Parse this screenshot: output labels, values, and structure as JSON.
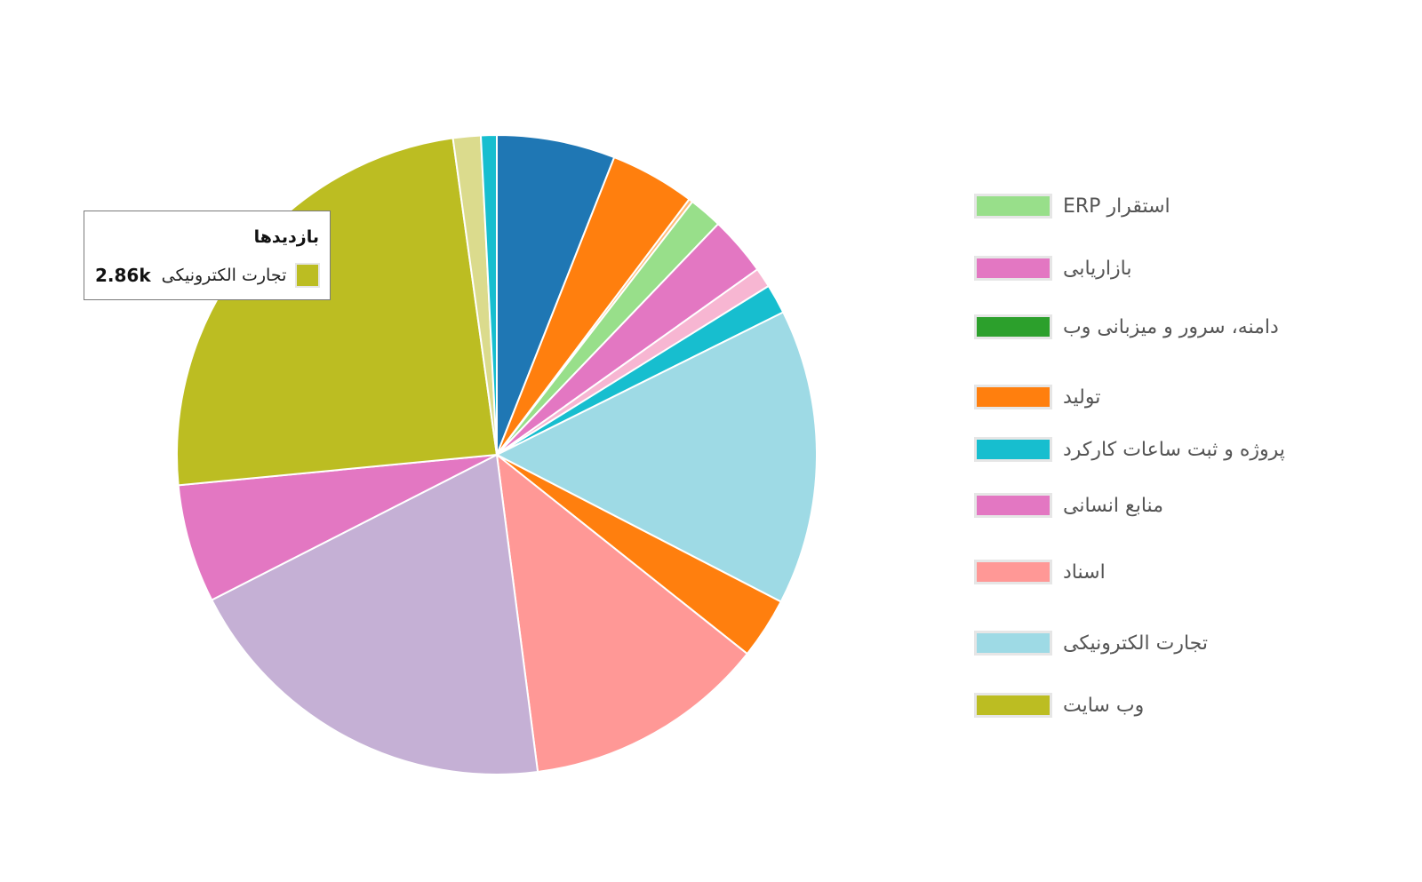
{
  "chart_data": {
    "type": "pie",
    "title": "",
    "slices": [
      {
        "color": "#1f77b4",
        "value": 6.0
      },
      {
        "color": "#ff7f0e",
        "value": 4.3
      },
      {
        "color": "#ffbb78",
        "value": 0.2
      },
      {
        "color": "#98df8a",
        "value": 1.7
      },
      {
        "color": "#e377c2",
        "value": 3.0
      },
      {
        "color": "#f7b6d2",
        "value": 1.0
      },
      {
        "color": "#17becf",
        "value": 1.5
      },
      {
        "color": "#9edae5",
        "value": 15.0
      },
      {
        "color": "#ff7f0e",
        "value": 3.1
      },
      {
        "color": "#ff9896",
        "value": 12.3
      },
      {
        "color": "#c5b0d5",
        "value": 19.6
      },
      {
        "color": "#e377c2",
        "value": 6.0
      },
      {
        "color": "#bcbd22",
        "value": 24.4
      },
      {
        "color": "#dbdb8d",
        "value": 1.4
      },
      {
        "color": "#17becf",
        "value": 0.8
      }
    ],
    "legend": [
      {
        "label": "استقرار ERP",
        "color": "#98df8a"
      },
      {
        "label": "بازاریابی",
        "color": "#e377c2"
      },
      {
        "label": "دامنه، سرور و میزبانی وب",
        "color": "#2ca02c"
      },
      {
        "label": "تولید",
        "color": "#ff7f0e"
      },
      {
        "label": "پروژه و ثبت ساعات کارکرد",
        "color": "#17becf"
      },
      {
        "label": "منابع انسانی",
        "color": "#e377c2"
      },
      {
        "label": "اسناد",
        "color": "#ff9896"
      },
      {
        "label": "تجارت الکترونیکی",
        "color": "#9edae5"
      },
      {
        "label": "وب سایت",
        "color": "#bcbd22"
      }
    ],
    "legend_position": "right",
    "tooltip": {
      "title": "بازدیدها",
      "series": "تجارت الکترونیکی",
      "value": "2.86k",
      "color": "#bcbd22"
    }
  }
}
